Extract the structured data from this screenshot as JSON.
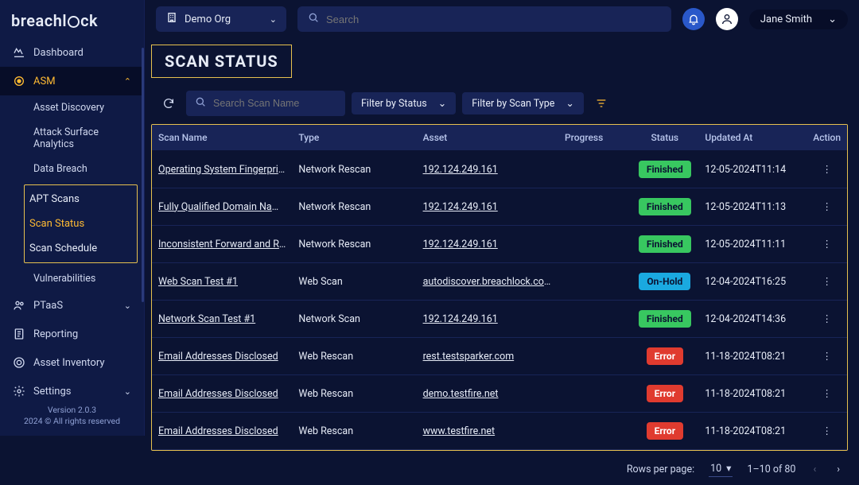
{
  "brand": "breachlock",
  "header": {
    "org": "Demo Org",
    "search_placeholder": "Search",
    "user": "Jane Smith"
  },
  "sidebar": {
    "items": [
      {
        "label": "Dashboard",
        "icon": "dashboard"
      },
      {
        "label": "ASM",
        "icon": "target",
        "accent": true,
        "expanded": true
      },
      {
        "label": "PTaaS",
        "icon": "users",
        "expandable": true
      },
      {
        "label": "Reporting",
        "icon": "report"
      },
      {
        "label": "Asset Inventory",
        "icon": "inventory"
      },
      {
        "label": "Settings",
        "icon": "gear",
        "expandable": true
      }
    ],
    "asm_sub": [
      "Asset Discovery",
      "Attack Surface Analytics",
      "Data Breach"
    ],
    "asm_box": [
      "APT Scans",
      "Scan Status",
      "Scan Schedule"
    ],
    "asm_tail": [
      "Vulnerabilities"
    ],
    "version_line1": "Version 2.0.3",
    "version_line2": "2024 © All rights reserved"
  },
  "page": {
    "title": "SCAN STATUS",
    "search_placeholder": "Search Scan Name",
    "filter_status_label": "Filter by Status",
    "filter_type_label": "Filter by Scan Type"
  },
  "table": {
    "columns": [
      "Scan Name",
      "Type",
      "Asset",
      "Progress",
      "Status",
      "Updated At",
      "Action"
    ],
    "rows": [
      {
        "name": "Operating System Fingerprinted",
        "type": "Network Rescan",
        "asset": "192.124.249.161",
        "status": "Finished",
        "status_color": "#38c760",
        "updated": "12-05-2024T11:14"
      },
      {
        "name": "Fully Qualified Domain Name (FQDN)",
        "type": "Network Rescan",
        "asset": "192.124.249.161",
        "status": "Finished",
        "status_color": "#38c760",
        "updated": "12-05-2024T11:13"
      },
      {
        "name": "Inconsistent Forward and Revers",
        "type": "Network Rescan",
        "asset": "192.124.249.161",
        "status": "Finished",
        "status_color": "#38c760",
        "updated": "12-05-2024T11:11"
      },
      {
        "name": "Web Scan Test #1",
        "type": "Web Scan",
        "asset": "autodiscover.breachlock.com",
        "status": "On-Hold",
        "status_color": "#1aa9e0",
        "updated": "12-04-2024T16:25"
      },
      {
        "name": "Network Scan Test #1",
        "type": "Network Scan",
        "asset": "192.124.249.161",
        "status": "Finished",
        "status_color": "#38c760",
        "updated": "12-04-2024T14:36"
      },
      {
        "name": "Email Addresses Disclosed",
        "type": "Web Rescan",
        "asset": "rest.testsparker.com",
        "status": "Error",
        "status_color": "#e03b2f",
        "status_text": "#ffffff",
        "updated": "11-18-2024T08:21"
      },
      {
        "name": "Email Addresses Disclosed",
        "type": "Web Rescan",
        "asset": "demo.testfire.net",
        "status": "Error",
        "status_color": "#e03b2f",
        "status_text": "#ffffff",
        "updated": "11-18-2024T08:21"
      },
      {
        "name": "Email Addresses Disclosed",
        "type": "Web Rescan",
        "asset": "www.testfire.net",
        "status": "Error",
        "status_color": "#e03b2f",
        "status_text": "#ffffff",
        "updated": "11-18-2024T08:21"
      }
    ]
  },
  "pager": {
    "label": "Rows per page:",
    "per_page": "10",
    "range": "1–10 of 80"
  },
  "colors": {
    "accent": "#ffbb33",
    "frame": "#e6c04f",
    "bg": "#0b1332",
    "panel": "#182457"
  }
}
